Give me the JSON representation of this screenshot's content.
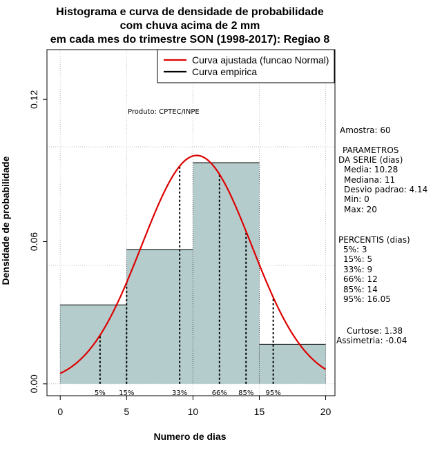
{
  "chart_data": {
    "type": "histogram",
    "title": [
      "Histograma e curva de densidade de probabilidade",
      "com chuva acima de 2 mm",
      "em cada mes do trimestre SON (1998-2017): Regiao 8"
    ],
    "xlabel": "Numero de dias",
    "ylabel": "Densidade de probabilidade",
    "xlim": [
      -1,
      20.7
    ],
    "ylim": [
      -0.005,
      0.141
    ],
    "x_ticks": [
      0,
      5,
      10,
      15,
      20
    ],
    "x_tick_labels": [
      "0",
      "5",
      "10",
      "15",
      "20"
    ],
    "y_ticks": [
      0.0,
      0.06,
      0.12
    ],
    "y_tick_labels": [
      "0.00",
      "0.06",
      "0.12"
    ],
    "grid": true,
    "grid_x": [
      0,
      5,
      10,
      15,
      20
    ],
    "grid_y": [
      0.0,
      0.05,
      0.1
    ],
    "bars": [
      {
        "x0": 0,
        "x1": 5,
        "density": 0.0333
      },
      {
        "x0": 5,
        "x1": 10,
        "density": 0.0567
      },
      {
        "x0": 10,
        "x1": 15,
        "density": 0.0933
      },
      {
        "x0": 15,
        "x1": 20,
        "density": 0.0167
      }
    ],
    "bar_color": "#b4cccc",
    "fitted_curve": {
      "name": "Curva ajustada (funcao Normal)",
      "distribution": "normal",
      "mean": 10.28,
      "sd": 4.14,
      "x_range": [
        0,
        20
      ],
      "color": "#dd0000"
    },
    "empirical_curve": {
      "name": "Curva empirica",
      "color": "#000000"
    },
    "legend": {
      "placement": "top-right",
      "entries": [
        "Curva ajustada (funcao Normal)",
        "Curva empirica"
      ]
    },
    "annotation": "Produto: CPTEC/INPE",
    "percentile_markers": [
      {
        "label": "5%",
        "x": 3
      },
      {
        "label": "15%",
        "x": 5
      },
      {
        "label": "33%",
        "x": 9
      },
      {
        "label": "66%",
        "x": 12
      },
      {
        "label": "85%",
        "x": 14
      },
      {
        "label": "95%",
        "x": 16.05
      }
    ]
  },
  "side_panel": {
    "amostra": "Amostra: 60",
    "parametros_title_1": "PARAMETROS",
    "parametros_title_2": "DA SERIE (dias)",
    "media": "Media: 10.28",
    "mediana": "Mediana: 11",
    "desvio": "Desvio padrao: 4.14",
    "min": "Min: 0",
    "max": "Max: 20",
    "percentis_title": "PERCENTIS (dias)",
    "p5": "5%: 3",
    "p15": "15%: 5",
    "p33": "33%: 9",
    "p66": "66%: 12",
    "p85": "85%: 14",
    "p95": "95%: 16.05",
    "curtose": "Curtose: 1.38",
    "assimetria": "Assimetria: -0.04"
  }
}
